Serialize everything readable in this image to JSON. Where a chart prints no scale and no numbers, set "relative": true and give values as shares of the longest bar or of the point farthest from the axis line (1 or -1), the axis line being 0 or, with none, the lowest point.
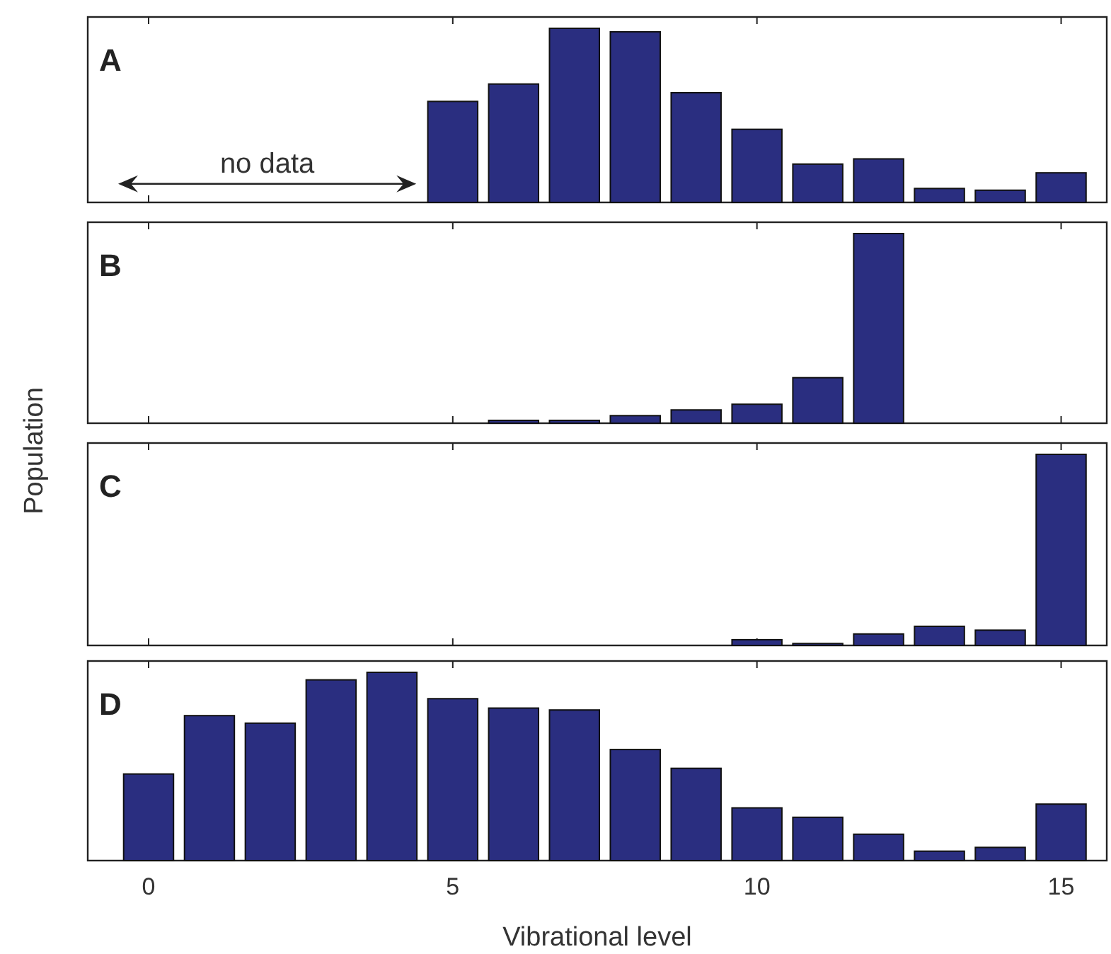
{
  "chart_data": [
    {
      "type": "bar",
      "title": "A",
      "relative": true,
      "x": [
        5,
        6,
        7,
        8,
        9,
        10,
        11,
        12,
        13,
        14,
        15
      ],
      "xlim": [
        -1,
        15.75
      ],
      "xticks": [
        0,
        5,
        10,
        15
      ],
      "tick_labels": false,
      "annotations": [
        "no data"
      ],
      "series": [
        {
          "color": "#2a2e80",
          "values": [
            0.58,
            0.68,
            1,
            0.98,
            0.63,
            0.42,
            0.22,
            0.25,
            0.08,
            0.07,
            0.17
          ]
        }
      ]
    },
    {
      "type": "bar",
      "title": "B",
      "relative": true,
      "x": [
        6,
        7,
        8,
        9,
        10,
        11,
        12
      ],
      "xlim": [
        -1,
        15.75
      ],
      "xticks": [
        0,
        5,
        10,
        15
      ],
      "tick_labels": false,
      "series": [
        {
          "color": "#2a2e80",
          "values": [
            0.015,
            0.015,
            0.04,
            0.07,
            0.1,
            0.24,
            1
          ]
        }
      ]
    },
    {
      "type": "bar",
      "title": "C",
      "ylabel": "Population",
      "relative": true,
      "x": [
        10,
        11,
        12,
        13,
        14,
        15
      ],
      "xlim": [
        -1,
        15.75
      ],
      "xticks": [
        0,
        5,
        10,
        15
      ],
      "tick_labels": false,
      "series": [
        {
          "color": "#2a2e80",
          "values": [
            0.03,
            0.01,
            0.06,
            0.1,
            0.08,
            1
          ]
        }
      ]
    },
    {
      "type": "bar",
      "title": "D",
      "xlabel": "Vibrational level",
      "relative": true,
      "x": [
        0,
        1,
        2,
        3,
        4,
        5,
        6,
        7,
        8,
        9,
        10,
        11,
        12,
        13,
        14,
        15
      ],
      "xlim": [
        -1,
        15.75
      ],
      "xticks": [
        0,
        5,
        10,
        15
      ],
      "tick_labels": "x",
      "series": [
        {
          "color": "#2a2e80",
          "values": [
            0.46,
            0.77,
            0.73,
            0.96,
            1,
            0.86,
            0.81,
            0.8,
            0.59,
            0.49,
            0.28,
            0.23,
            0.14,
            0.05,
            0.07,
            0.3
          ]
        }
      ]
    }
  ]
}
